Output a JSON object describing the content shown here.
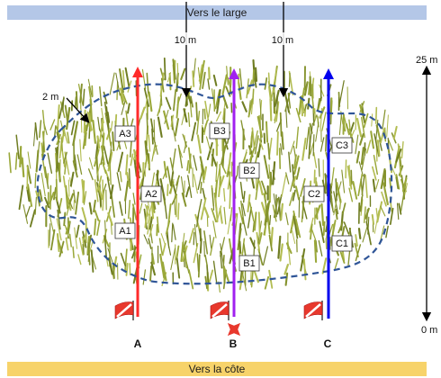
{
  "labels": {
    "offshore": "Vers le large",
    "shore": "Vers la côte",
    "dist_left": "10 m",
    "dist_right": "10 m",
    "gap": "2 m",
    "scale_top": "25 m",
    "scale_bottom": "0 m"
  },
  "transects": [
    {
      "id": "A",
      "color": "#ff2a2a",
      "stations": [
        "A1",
        "A2",
        "A3"
      ]
    },
    {
      "id": "B",
      "color": "#a020f0",
      "stations": [
        "B1",
        "B2",
        "B3"
      ]
    },
    {
      "id": "C",
      "color": "#0000ee",
      "stations": [
        "C1",
        "C2",
        "C3"
      ]
    }
  ],
  "colors": {
    "seagrass": "#9aa83a",
    "seagrass_dark": "#6f7d22",
    "boundary": "#2f5597",
    "flag": "#e8382d",
    "marker": "#e8382d"
  },
  "icons": [
    "flag-icon",
    "cross-marker-icon"
  ]
}
